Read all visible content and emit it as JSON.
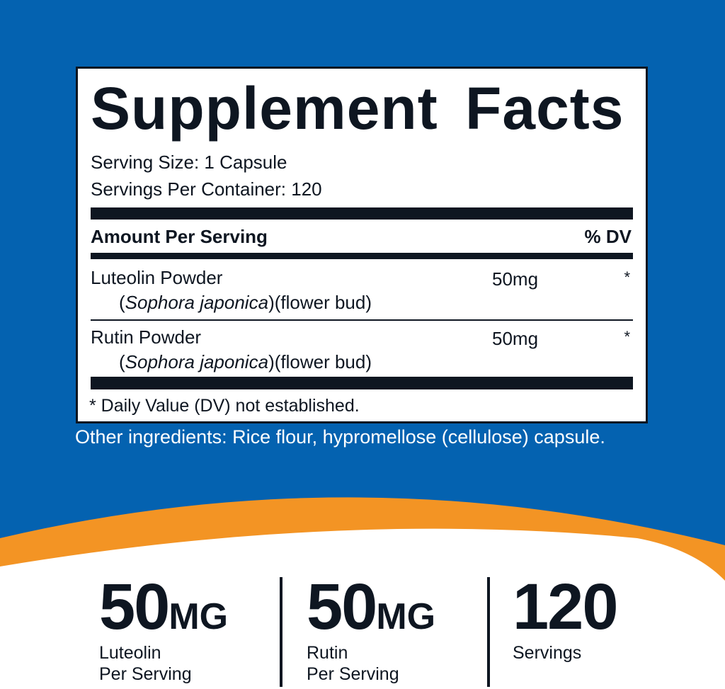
{
  "colors": {
    "blue": "#0462b0",
    "orange": "#f39424",
    "text": "#0e1621"
  },
  "facts": {
    "title": "Supplement Facts",
    "serving_size": "Serving Size: 1 Capsule",
    "servings_per_container": "Servings Per Container: 120",
    "header_left": "Amount Per Serving",
    "header_right": "% DV",
    "rows": [
      {
        "name": "Luteolin Powder",
        "source_italic": "Sophora japonica",
        "source_rest": "(flower bud)",
        "amount": "50mg",
        "dv": "*"
      },
      {
        "name": "Rutin Powder",
        "source_italic": "Sophora japonica",
        "source_rest": "(flower bud)",
        "amount": "50mg",
        "dv": "*"
      }
    ],
    "footnote": "* Daily Value (DV) not established."
  },
  "other_ingredients": "Other ingredients: Rice flour, hypromellose (cellulose) capsule.",
  "stats": [
    {
      "value": "50",
      "unit": "MG",
      "line1": "Luteolin",
      "line2": "Per Serving"
    },
    {
      "value": "50",
      "unit": "MG",
      "line1": "Rutin",
      "line2": "Per Serving"
    },
    {
      "value": "120",
      "unit": "",
      "line1": "Servings",
      "line2": ""
    }
  ]
}
